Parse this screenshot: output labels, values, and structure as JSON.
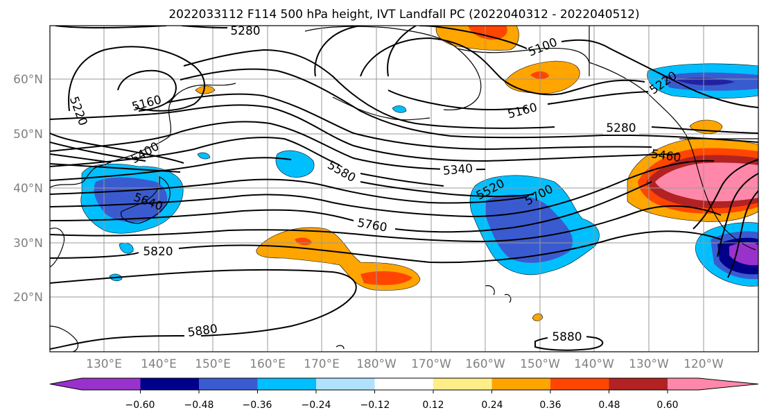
{
  "title": "2022033112 F114 500 hPa height, IVT Landfall PC (2022040312 - 2022040512)",
  "lat_labels": [
    "60°N",
    "50°N",
    "40°N",
    "30°N",
    "20°N"
  ],
  "lon_labels": [
    "130°E",
    "140°E",
    "150°E",
    "160°E",
    "170°E",
    "180°W",
    "170°W",
    "160°W",
    "150°W",
    "140°W",
    "130°W",
    "120°W"
  ],
  "contour_labels": [
    "5280",
    "5100",
    "5220",
    "5160",
    "5220",
    "5160",
    "5280",
    "5400",
    "5460",
    "5580",
    "5340",
    "5520",
    "5700",
    "5640",
    "5760",
    "5820",
    "5880",
    "5880"
  ],
  "colorbar": {
    "ticks": [
      "−0.60",
      "−0.48",
      "−0.36",
      "−0.24",
      "−0.12",
      "0.12",
      "0.24",
      "0.36",
      "0.48",
      "0.60"
    ],
    "colors": [
      "#9932CC",
      "#00008B",
      "#3A5BD0",
      "#00BFFF",
      "#B0E2FF",
      "#FFFFFF",
      "#FFEE88",
      "#FFA500",
      "#FF4500",
      "#B22222",
      "#FF88AA"
    ]
  },
  "chart_data": {
    "type": "heatmap",
    "field": "IVT landfall principal component (shaded) with 500 hPa height contours",
    "contour_interval": 60,
    "lat_range_deg": [
      10,
      70
    ],
    "lon_range_deg_east": [
      120,
      250
    ],
    "levels": [
      -0.6,
      -0.48,
      -0.36,
      -0.24,
      -0.12,
      0.12,
      0.24,
      0.36,
      0.48,
      0.6
    ],
    "shaded_regions": [
      {
        "area": "Japan / western Pacific",
        "value": -0.36
      },
      {
        "area": "central North Pacific 160-150°W",
        "value": -0.36
      },
      {
        "area": "off Baja California",
        "value": -0.6
      },
      {
        "area": "Gulf of Alaska east",
        "value": -0.36
      },
      {
        "area": "subtropical Pacific 165-175°W",
        "value": 0.36
      },
      {
        "area": "US West Coast",
        "value": 0.6
      },
      {
        "area": "Alaska",
        "value": 0.36
      }
    ]
  }
}
